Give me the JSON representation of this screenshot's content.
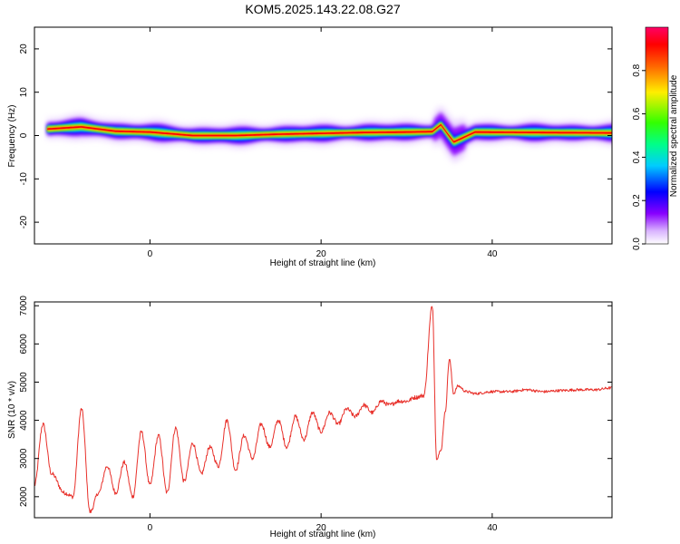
{
  "title": "KOM5.2025.143.22.08.G27",
  "chart_data": [
    {
      "type": "heatmap",
      "xlabel": "Height of straight line (km)",
      "ylabel": "Frequency (Hz)",
      "xlim": [
        -13.5,
        54
      ],
      "ylim": [
        -25,
        25
      ],
      "xticks": [
        "0",
        "20",
        "40"
      ],
      "yticks": [
        "20",
        "10",
        "0",
        "-10",
        "-20"
      ],
      "colorbar": {
        "label": "Normalized spectral amplitude",
        "range": [
          0,
          1
        ],
        "ticks": [
          "0.0",
          "0.2",
          "0.4",
          "0.6",
          "0.8"
        ],
        "colormap": [
          "#ffffff",
          "#8800ff",
          "#0000ff",
          "#00ccff",
          "#00ff88",
          "#33ff00",
          "#ffee00",
          "#ff6600",
          "#ff0000",
          "#ff0066"
        ]
      },
      "ridge": {
        "description_points": [
          {
            "x": -12,
            "freq": 1.5
          },
          {
            "x": -8,
            "freq": 2.0
          },
          {
            "x": -4,
            "freq": 1.0
          },
          {
            "x": 0,
            "freq": 0.8
          },
          {
            "x": 5,
            "freq": 0.0
          },
          {
            "x": 10,
            "freq": 0.0
          },
          {
            "x": 15,
            "freq": 0.3
          },
          {
            "x": 20,
            "freq": 0.5
          },
          {
            "x": 25,
            "freq": 0.7
          },
          {
            "x": 30,
            "freq": 0.8
          },
          {
            "x": 33,
            "freq": 0.9
          },
          {
            "x": 34,
            "freq": 2.5
          },
          {
            "x": 35.5,
            "freq": -1.5
          },
          {
            "x": 38,
            "freq": 0.8
          },
          {
            "x": 45,
            "freq": 0.7
          },
          {
            "x": 54,
            "freq": 0.6
          }
        ],
        "peak_amplitude": 1.0
      }
    },
    {
      "type": "line",
      "xlabel": "Height of straight line (km)",
      "ylabel": "SNR (10 * v/v)",
      "xlim": [
        -13.5,
        54
      ],
      "ylim": [
        1450,
        7100
      ],
      "xticks": [
        "0",
        "20",
        "40"
      ],
      "yticks": [
        "2000",
        "3000",
        "4000",
        "5000",
        "6000",
        "7000"
      ],
      "series": [
        {
          "color": "#e8302a",
          "x": [
            -13.5,
            -12.5,
            -11.5,
            -10,
            -9,
            -8,
            -7,
            -6,
            -5,
            -4,
            -3,
            -2,
            -1,
            0,
            1,
            2,
            3,
            4,
            5,
            6,
            7,
            8,
            9,
            10,
            11,
            12,
            13,
            14,
            15,
            16,
            17,
            18,
            19,
            20,
            21,
            22,
            23,
            24,
            25,
            26,
            27,
            28,
            29,
            30,
            31,
            32,
            33,
            33.5,
            34,
            34.5,
            35,
            35.5,
            36,
            37,
            38,
            40,
            42,
            44,
            46,
            48,
            50,
            52,
            54
          ],
          "y": [
            2300,
            3900,
            2600,
            2100,
            2000,
            4300,
            1600,
            2100,
            2800,
            2100,
            2900,
            2000,
            3700,
            2300,
            3600,
            2100,
            3800,
            2400,
            3400,
            2600,
            3300,
            2800,
            4000,
            2700,
            3600,
            3000,
            3900,
            3300,
            4000,
            3300,
            4100,
            3500,
            4200,
            3700,
            4200,
            3900,
            4300,
            4100,
            4400,
            4200,
            4500,
            4400,
            4500,
            4500,
            4600,
            4650,
            7000,
            3000,
            3200,
            4200,
            5600,
            4700,
            4900,
            4750,
            4700,
            4750,
            4750,
            4800,
            4750,
            4780,
            4800,
            4800,
            4850
          ]
        }
      ]
    }
  ]
}
